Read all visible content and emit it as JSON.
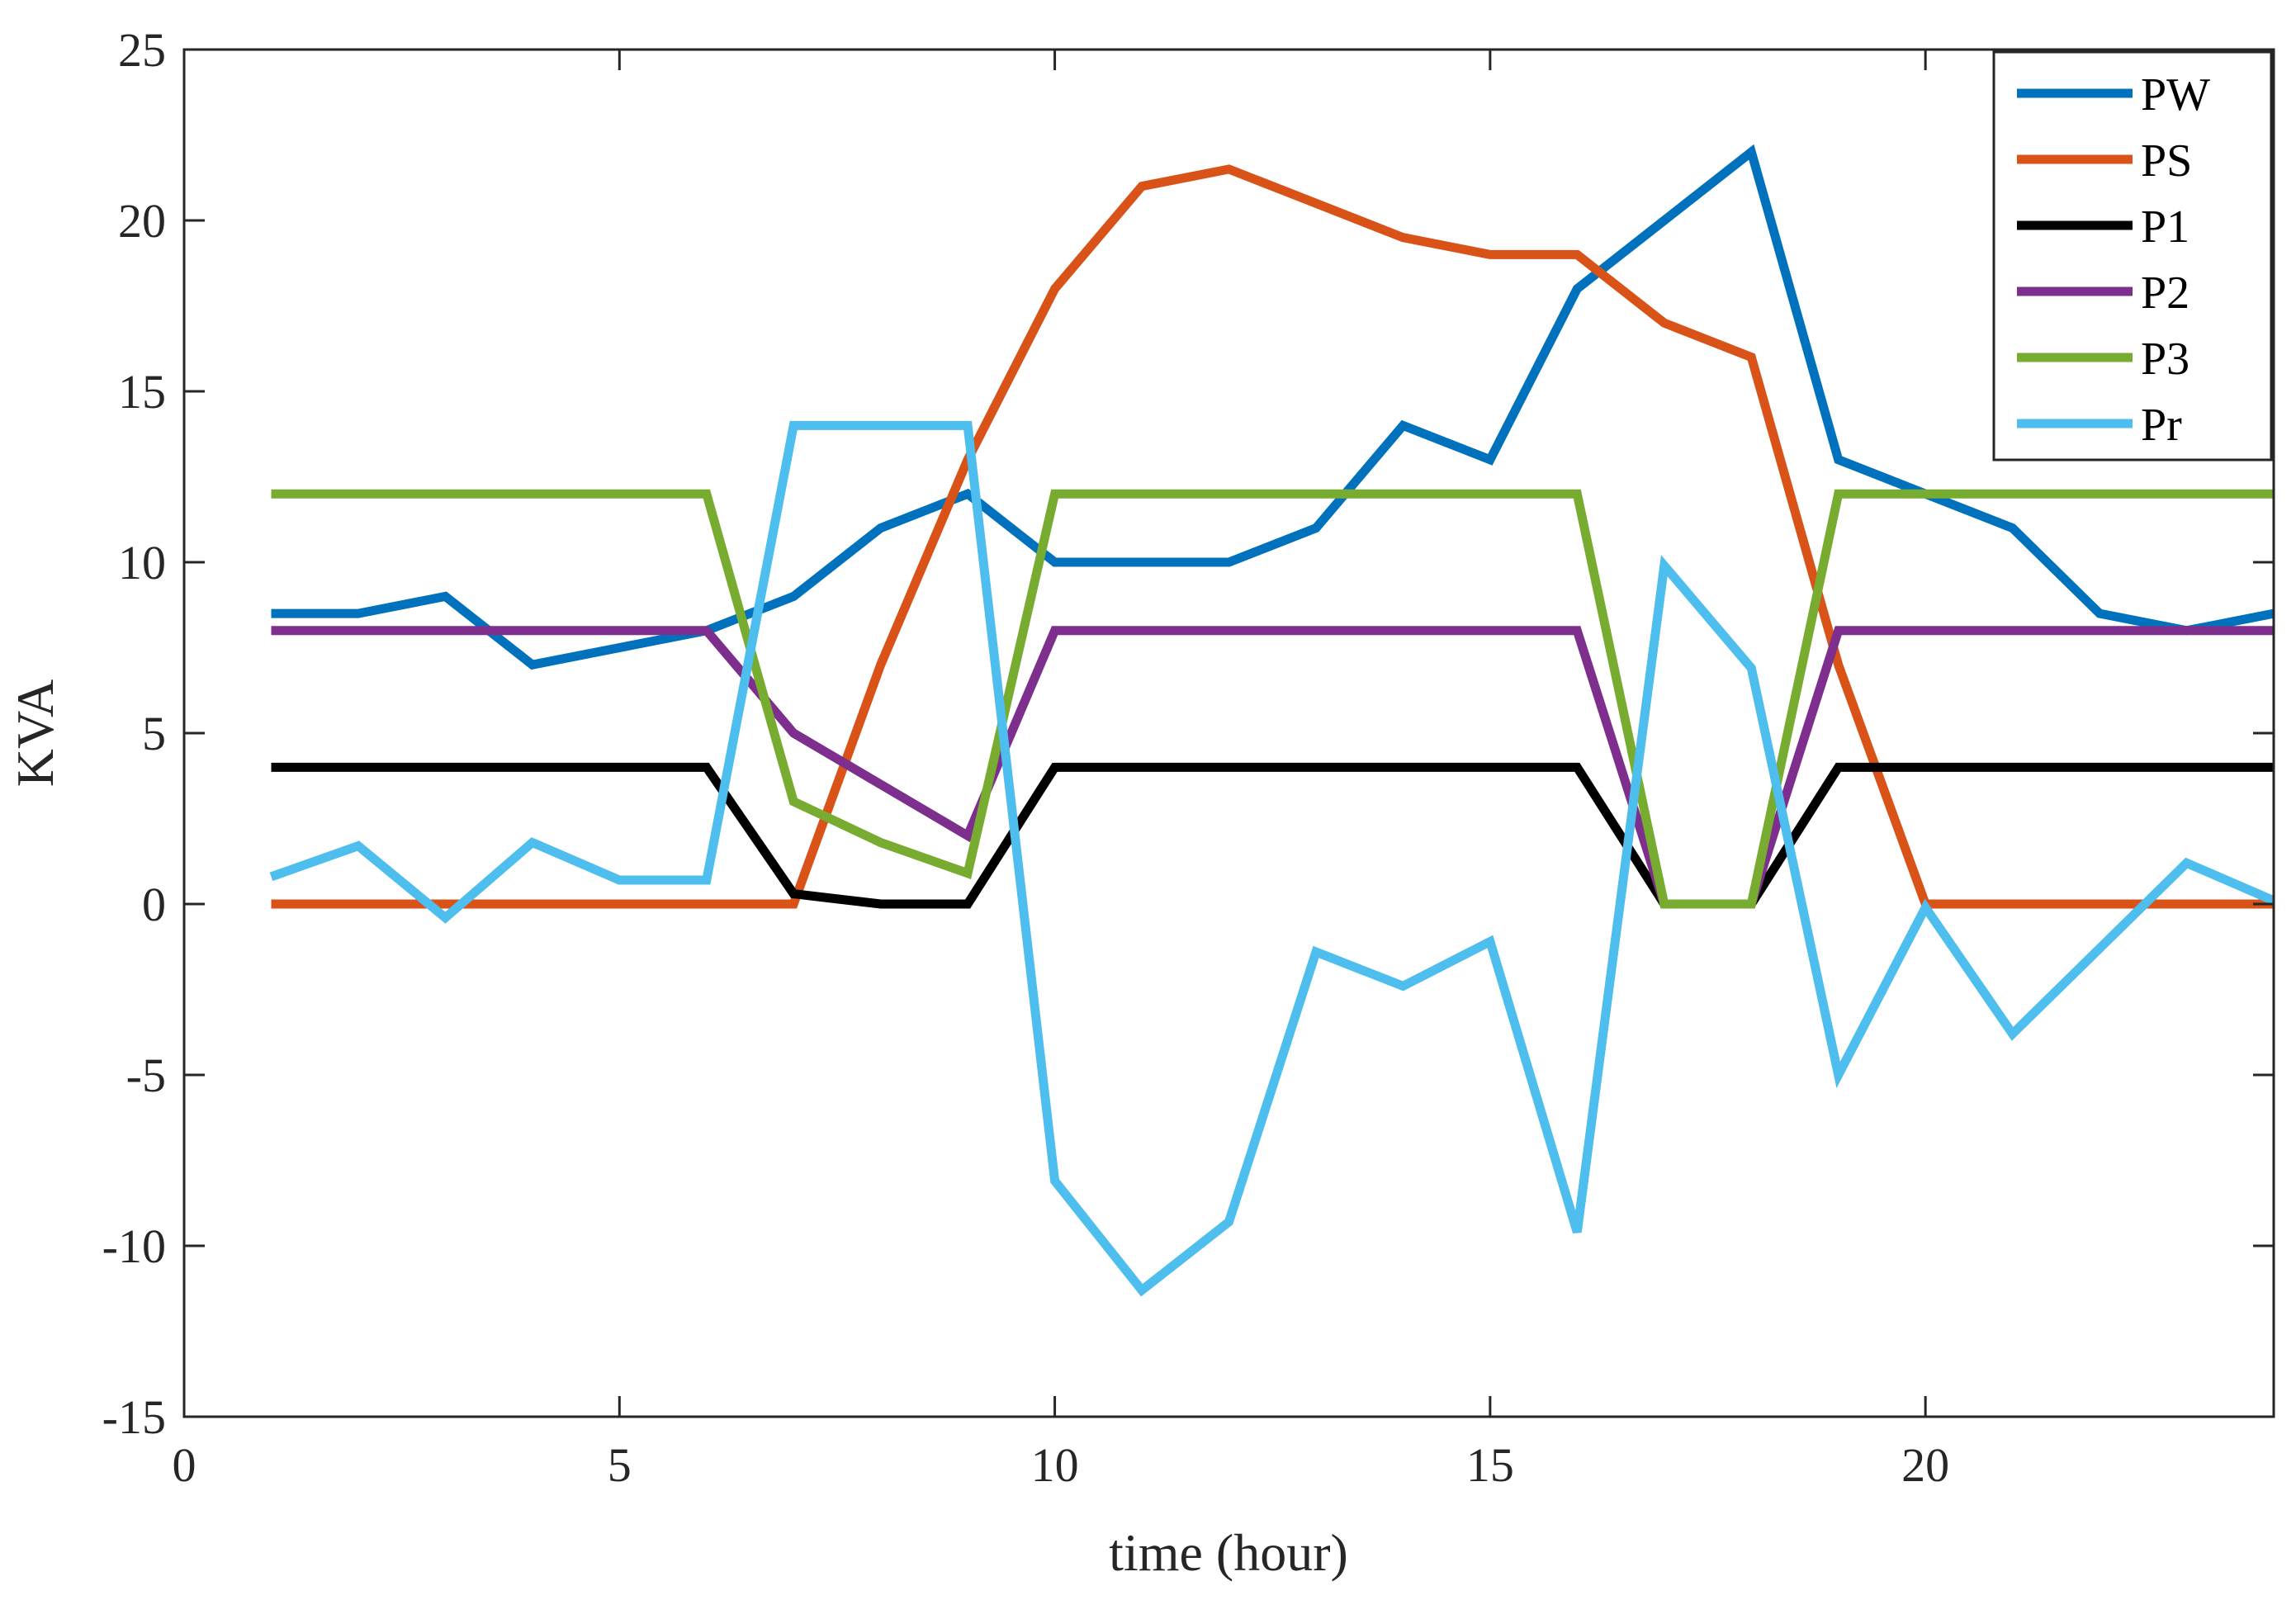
{
  "chart_data": {
    "type": "line",
    "xlabel": "time (hour)",
    "ylabel": "KVA",
    "xlim": [
      0,
      24
    ],
    "ylim": [
      -15,
      25
    ],
    "xticks": [
      0,
      5,
      10,
      15,
      20
    ],
    "yticks": [
      -15,
      -10,
      -5,
      0,
      5,
      10,
      15,
      20,
      25
    ],
    "grid": false,
    "legend_position": "top-right",
    "x": [
      1,
      2,
      3,
      4,
      5,
      6,
      7,
      8,
      9,
      10,
      11,
      12,
      13,
      14,
      15,
      16,
      17,
      18,
      19,
      20,
      21,
      22,
      23,
      24
    ],
    "series": [
      {
        "name": "PW",
        "color": "#0072BD",
        "values": [
          8.5,
          8.5,
          9,
          7,
          7.5,
          8,
          9,
          11,
          12,
          10,
          10,
          10,
          11,
          14,
          13,
          18,
          20,
          22,
          13,
          12,
          11,
          8.5,
          8,
          8.5
        ]
      },
      {
        "name": "PS",
        "color": "#D95319",
        "values": [
          0,
          0,
          0,
          0,
          0,
          0,
          0,
          7,
          13,
          18,
          21,
          21.5,
          20.5,
          19.5,
          19,
          19,
          17,
          16,
          7,
          0,
          0,
          0,
          0,
          0
        ]
      },
      {
        "name": "P1",
        "color": "#000000",
        "values": [
          4,
          4,
          4,
          4,
          4,
          4,
          0.3,
          0,
          0,
          4,
          4,
          4,
          4,
          4,
          4,
          4,
          0,
          0,
          4,
          4,
          4,
          4,
          4,
          4
        ]
      },
      {
        "name": "P2",
        "color": "#7E2F8E",
        "values": [
          8,
          8,
          8,
          8,
          8,
          8,
          5,
          3.5,
          2,
          8,
          8,
          8,
          8,
          8,
          8,
          8,
          0,
          0,
          8,
          8,
          8,
          8,
          8,
          8
        ]
      },
      {
        "name": "P3",
        "color": "#77AC30",
        "values": [
          12,
          12,
          12,
          12,
          12,
          12,
          3,
          1.8,
          0.9,
          12,
          12,
          12,
          12,
          12,
          12,
          12,
          0,
          0,
          12,
          12,
          12,
          12,
          12,
          12
        ]
      },
      {
        "name": "Pr",
        "color": "#4DBEEE",
        "values": [
          0.8,
          1.7,
          -0.4,
          1.8,
          0.7,
          0.7,
          14,
          14,
          14,
          -8.1,
          -11.3,
          -9.3,
          -1.4,
          -2.4,
          -1.1,
          -9.6,
          9.9,
          6.9,
          -5,
          -0.1,
          -3.8,
          -1.3,
          1.2,
          0.1
        ]
      }
    ]
  }
}
